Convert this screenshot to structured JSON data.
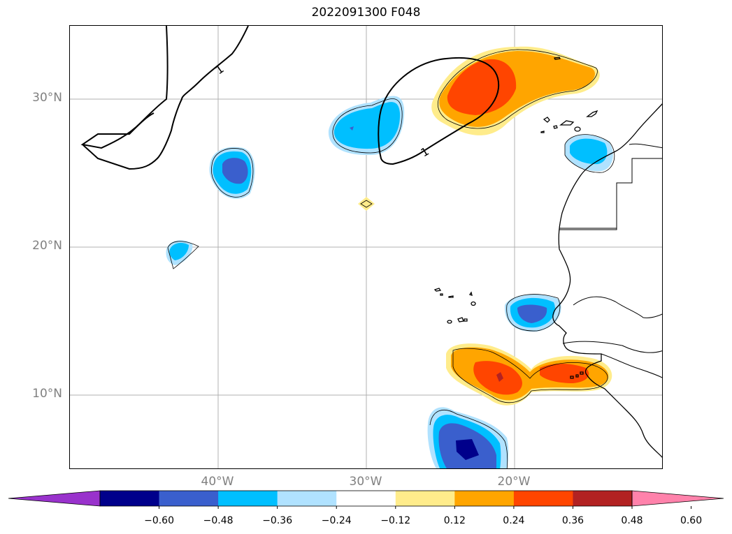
{
  "map": {
    "title": "2022091300 F048",
    "lat_labels": [
      {
        "text": "30°N",
        "lat": 30
      },
      {
        "text": "20°N",
        "lat": 20
      },
      {
        "text": "10°N",
        "lat": 10
      }
    ],
    "lon_labels": [
      {
        "text": "40°W",
        "lon": -40
      },
      {
        "text": "30°W",
        "lon": -30
      },
      {
        "text": "20°W",
        "lon": -20
      }
    ],
    "contour_label": "1",
    "extent": {
      "lon_min": -50,
      "lon_max": -10,
      "lat_min": 5,
      "lat_max": 35
    }
  },
  "colorbar": {
    "ticks": [
      "−0.60",
      "−0.48",
      "−0.36",
      "−0.24",
      "−0.12",
      "0.12",
      "0.24",
      "0.36",
      "0.48",
      "0.60"
    ],
    "colors": [
      "#9932cc",
      "#00008b",
      "#3a5fcd",
      "#00bfff",
      "#b0e2ff",
      "#ffffff",
      "#ffec8b",
      "#ffa500",
      "#ff4500",
      "#b22222",
      "#ff82ab"
    ]
  }
}
